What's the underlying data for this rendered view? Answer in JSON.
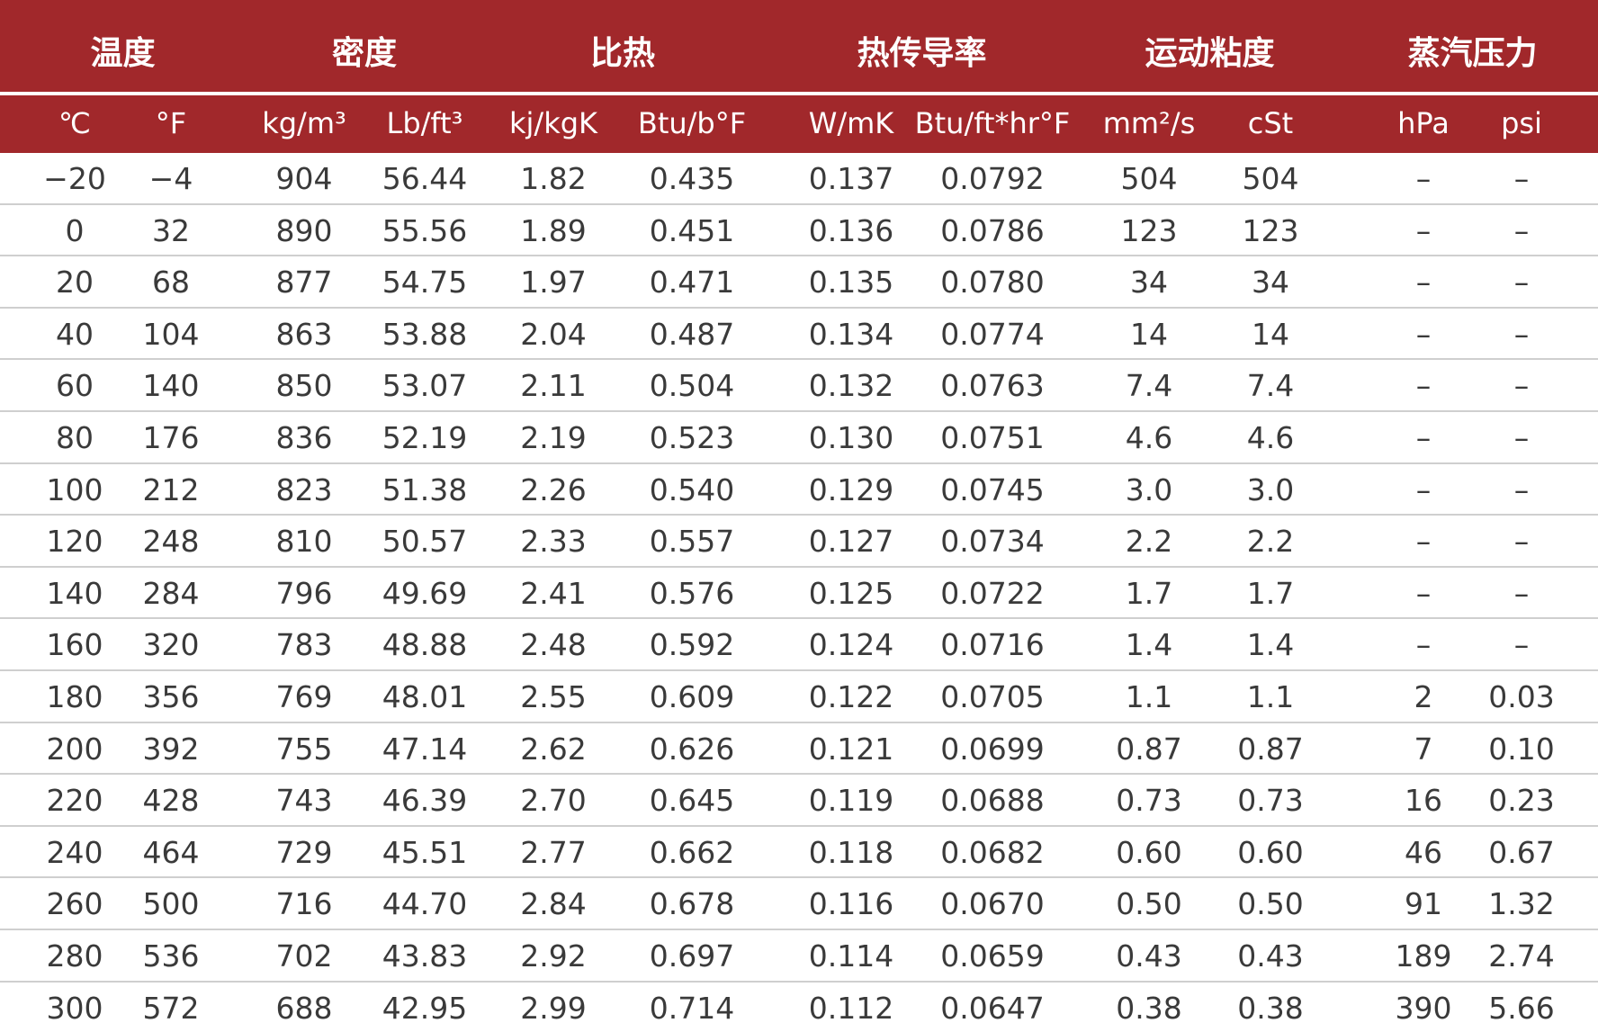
{
  "table": {
    "groups": [
      "温度",
      "密度",
      "比热",
      "热传导率",
      "运动粘度",
      "蒸汽压力"
    ],
    "units": [
      "℃",
      "°F",
      "kg/m³",
      "Lb/ft³",
      "kj/kgK",
      "Btu/b°F",
      "W/mK",
      "Btu/ft*hr°F",
      "mm²/s",
      "cSt",
      "hPa",
      "psi"
    ],
    "rows": [
      [
        "−20",
        "−4",
        "904",
        "56.44",
        "1.82",
        "0.435",
        "0.137",
        "0.0792",
        "504",
        "504",
        "–",
        "–"
      ],
      [
        "0",
        "32",
        "890",
        "55.56",
        "1.89",
        "0.451",
        "0.136",
        "0.0786",
        "123",
        "123",
        "–",
        "–"
      ],
      [
        "20",
        "68",
        "877",
        "54.75",
        "1.97",
        "0.471",
        "0.135",
        "0.0780",
        "34",
        "34",
        "–",
        "–"
      ],
      [
        "40",
        "104",
        "863",
        "53.88",
        "2.04",
        "0.487",
        "0.134",
        "0.0774",
        "14",
        "14",
        "–",
        "–"
      ],
      [
        "60",
        "140",
        "850",
        "53.07",
        "2.11",
        "0.504",
        "0.132",
        "0.0763",
        "7.4",
        "7.4",
        "–",
        "–"
      ],
      [
        "80",
        "176",
        "836",
        "52.19",
        "2.19",
        "0.523",
        "0.130",
        "0.0751",
        "4.6",
        "4.6",
        "–",
        "–"
      ],
      [
        "100",
        "212",
        "823",
        "51.38",
        "2.26",
        "0.540",
        "0.129",
        "0.0745",
        "3.0",
        "3.0",
        "–",
        "–"
      ],
      [
        "120",
        "248",
        "810",
        "50.57",
        "2.33",
        "0.557",
        "0.127",
        "0.0734",
        "2.2",
        "2.2",
        "–",
        "–"
      ],
      [
        "140",
        "284",
        "796",
        "49.69",
        "2.41",
        "0.576",
        "0.125",
        "0.0722",
        "1.7",
        "1.7",
        "–",
        "–"
      ],
      [
        "160",
        "320",
        "783",
        "48.88",
        "2.48",
        "0.592",
        "0.124",
        "0.0716",
        "1.4",
        "1.4",
        "–",
        "–"
      ],
      [
        "180",
        "356",
        "769",
        "48.01",
        "2.55",
        "0.609",
        "0.122",
        "0.0705",
        "1.1",
        "1.1",
        "2",
        "0.03"
      ],
      [
        "200",
        "392",
        "755",
        "47.14",
        "2.62",
        "0.626",
        "0.121",
        "0.0699",
        "0.87",
        "0.87",
        "7",
        "0.10"
      ],
      [
        "220",
        "428",
        "743",
        "46.39",
        "2.70",
        "0.645",
        "0.119",
        "0.0688",
        "0.73",
        "0.73",
        "16",
        "0.23"
      ],
      [
        "240",
        "464",
        "729",
        "45.51",
        "2.77",
        "0.662",
        "0.118",
        "0.0682",
        "0.60",
        "0.60",
        "46",
        "0.67"
      ],
      [
        "260",
        "500",
        "716",
        "44.70",
        "2.84",
        "0.678",
        "0.116",
        "0.0670",
        "0.50",
        "0.50",
        "91",
        "1.32"
      ],
      [
        "280",
        "536",
        "702",
        "43.83",
        "2.92",
        "0.697",
        "0.114",
        "0.0659",
        "0.43",
        "0.43",
        "189",
        "2.74"
      ],
      [
        "300",
        "572",
        "688",
        "42.95",
        "2.99",
        "0.714",
        "0.112",
        "0.0647",
        "0.38",
        "0.38",
        "390",
        "5.66"
      ]
    ]
  }
}
